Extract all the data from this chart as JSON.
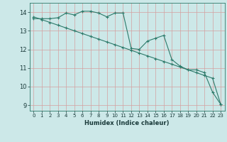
{
  "title": "",
  "xlabel": "Humidex (Indice chaleur)",
  "bg_color": "#cce8e8",
  "grid_color": "#d4a0a0",
  "line_color": "#2d7a6a",
  "xlim": [
    -0.5,
    23.5
  ],
  "ylim": [
    8.7,
    14.5
  ],
  "xticks": [
    0,
    1,
    2,
    3,
    4,
    5,
    6,
    7,
    8,
    9,
    10,
    11,
    12,
    13,
    14,
    15,
    16,
    17,
    18,
    19,
    20,
    21,
    22,
    23
  ],
  "yticks": [
    9,
    10,
    11,
    12,
    13,
    14
  ],
  "series1_x": [
    0,
    1,
    2,
    3,
    4,
    5,
    6,
    7,
    8,
    9,
    10,
    11,
    12,
    13,
    14,
    15,
    16,
    17,
    18,
    19,
    20,
    21,
    22,
    23
  ],
  "series1_y": [
    13.65,
    13.65,
    13.65,
    13.7,
    13.95,
    13.85,
    14.05,
    14.05,
    13.95,
    13.75,
    13.95,
    13.95,
    12.05,
    12.0,
    12.45,
    12.6,
    12.75,
    11.45,
    11.1,
    10.9,
    10.9,
    10.75,
    9.7,
    9.05
  ],
  "series2_x": [
    0,
    1,
    2,
    3,
    4,
    5,
    6,
    7,
    8,
    9,
    10,
    11,
    12,
    13,
    14,
    15,
    16,
    17,
    18,
    19,
    20,
    21,
    22,
    23
  ],
  "series2_y": [
    13.75,
    13.6,
    13.45,
    13.3,
    13.15,
    13.0,
    12.85,
    12.7,
    12.55,
    12.4,
    12.25,
    12.1,
    11.95,
    11.8,
    11.65,
    11.5,
    11.35,
    11.2,
    11.05,
    10.9,
    10.75,
    10.6,
    10.45,
    9.05
  ],
  "xlabel_fontsize": 6,
  "tick_fontsize": 5,
  "marker_size": 3,
  "line_width": 0.8
}
